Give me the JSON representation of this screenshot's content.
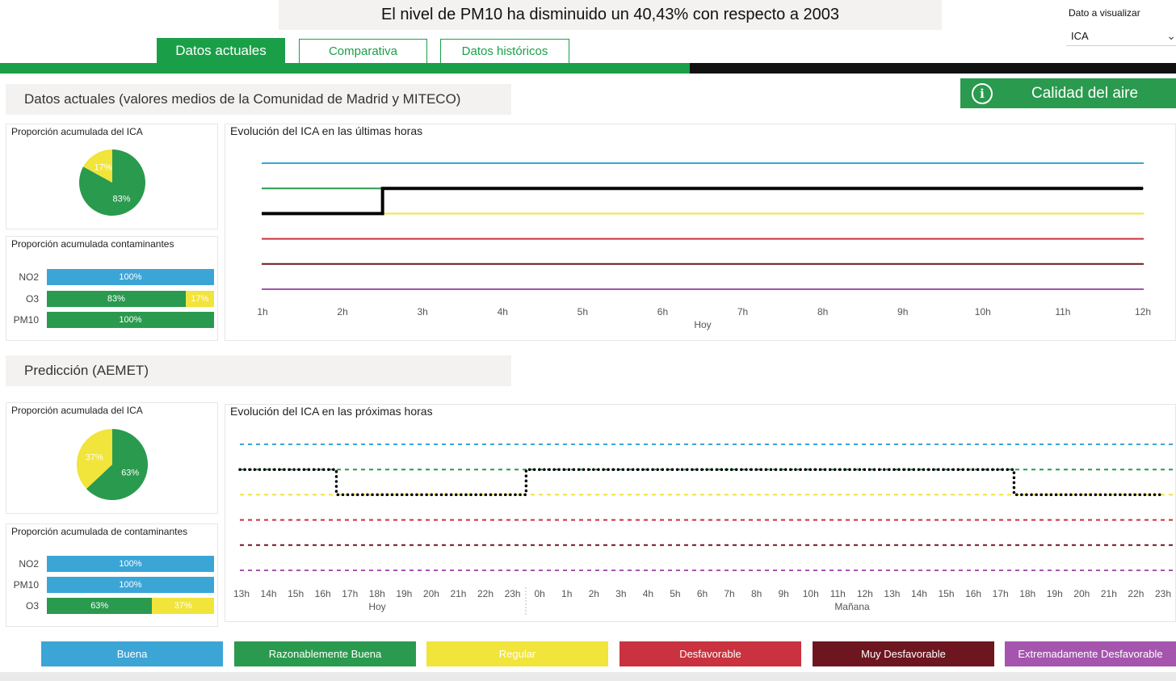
{
  "headline": "El nivel de PM10 ha disminuido un 40,43% con respecto a 2003",
  "selector": {
    "label": "Dato a visualizar",
    "value": "ICA"
  },
  "tabs": [
    "Datos actuales",
    "Comparativa",
    "Datos históricos"
  ],
  "calidad_button": "Calidad del aire",
  "current": {
    "section_title": "Datos actuales (valores medios de la Comunidad de Madrid y MITECO)",
    "pie": {
      "title": "Proporción acumulada del ICA",
      "slices": [
        {
          "label": "83%",
          "value": 83,
          "color": "#2a9a4e"
        },
        {
          "label": "17%",
          "value": 17,
          "color": "#f1e43a"
        }
      ]
    },
    "bars": {
      "title": "Proporción acumulada contaminantes",
      "rows": [
        {
          "name": "NO2",
          "segments": [
            {
              "label": "100%",
              "value": 100,
              "color": "#3ba5d6"
            }
          ]
        },
        {
          "name": "O3",
          "segments": [
            {
              "label": "83%",
              "value": 83,
              "color": "#2a9a4e"
            },
            {
              "label": "17%",
              "value": 17,
              "color": "#f1e43a"
            }
          ]
        },
        {
          "name": "PM10",
          "segments": [
            {
              "label": "100%",
              "value": 100,
              "color": "#2a9a4e"
            }
          ]
        }
      ]
    },
    "chart_title": "Evolución del ICA en las últimas horas"
  },
  "prediction": {
    "section_title": "Predicción (AEMET)",
    "pie": {
      "title": "Proporción acumulada del ICA",
      "slices": [
        {
          "label": "63%",
          "value": 63,
          "color": "#2a9a4e"
        },
        {
          "label": "37%",
          "value": 37,
          "color": "#f1e43a"
        }
      ]
    },
    "bars": {
      "title": "Proporción acumulada de contaminantes",
      "rows": [
        {
          "name": "NO2",
          "segments": [
            {
              "label": "100%",
              "value": 100,
              "color": "#3ba5d6"
            }
          ]
        },
        {
          "name": "PM10",
          "segments": [
            {
              "label": "100%",
              "value": 100,
              "color": "#3ba5d6"
            }
          ]
        },
        {
          "name": "O3",
          "segments": [
            {
              "label": "63%",
              "value": 63,
              "color": "#2a9a4e"
            },
            {
              "label": "37%",
              "value": 37,
              "color": "#f1e43a"
            }
          ]
        }
      ]
    },
    "chart_title": "Evolución del ICA en las próximas horas"
  },
  "legend": [
    {
      "label": "Buena",
      "color": "#3ba5d6"
    },
    {
      "label": "Razonablemente Buena",
      "color": "#2a9a4e"
    },
    {
      "label": "Regular",
      "color": "#f1e43a"
    },
    {
      "label": "Desfavorable",
      "color": "#c9323e"
    },
    {
      "label": "Muy Desfavorable",
      "color": "#6e1620"
    },
    {
      "label": "Extremadamente Desfavorable",
      "color": "#a555ae"
    }
  ],
  "chart_data": [
    {
      "type": "line",
      "title": "Evolución del ICA en las últimas horas",
      "x": [
        "1h",
        "2h",
        "3h",
        "4h",
        "5h",
        "6h",
        "7h",
        "8h",
        "9h",
        "10h",
        "11h",
        "12h"
      ],
      "x_group_labels": [
        "Hoy"
      ],
      "category_levels": [
        "Buena",
        "Razonablemente Buena",
        "Regular",
        "Desfavorable",
        "Muy Desfavorable",
        "Extremadamente Desfavorable"
      ],
      "category_colors": [
        "#3ba5d6",
        "#2a9a4e",
        "#f1e43a",
        "#c9323e",
        "#6e1620",
        "#a555ae"
      ],
      "series": [
        {
          "values": [
            "Regular",
            "Regular",
            "Razonablemente Buena",
            "Razonablemente Buena",
            "Razonablemente Buena",
            "Razonablemente Buena",
            "Razonablemente Buena",
            "Razonablemente Buena",
            "Razonablemente Buena",
            "Razonablemente Buena",
            "Razonablemente Buena",
            "Razonablemente Buena"
          ],
          "step_after": "2h",
          "style": "solid"
        }
      ]
    },
    {
      "type": "line",
      "title": "Evolución del ICA en las próximas horas",
      "x": [
        "13h",
        "14h",
        "15h",
        "16h",
        "17h",
        "18h",
        "19h",
        "20h",
        "21h",
        "22h",
        "23h",
        "0h",
        "1h",
        "2h",
        "3h",
        "4h",
        "5h",
        "6h",
        "7h",
        "8h",
        "9h",
        "10h",
        "11h",
        "12h",
        "13h",
        "14h",
        "15h",
        "16h",
        "17h",
        "18h",
        "19h",
        "20h",
        "21h",
        "22h",
        "23h"
      ],
      "x_group_labels": [
        "Hoy",
        "Mañana"
      ],
      "category_levels": [
        "Buena",
        "Razonablemente Buena",
        "Regular",
        "Desfavorable",
        "Muy Desfavorable",
        "Extremadamente Desfavorable"
      ],
      "category_colors": [
        "#3ba5d6",
        "#2a9a4e",
        "#f1e43a",
        "#c9323e",
        "#6e1620",
        "#a555ae"
      ],
      "series": [
        {
          "values": [
            "Razonablemente Buena",
            "Razonablemente Buena",
            "Razonablemente Buena",
            "Razonablemente Buena",
            "Regular",
            "Regular",
            "Regular",
            "Regular",
            "Regular",
            "Regular",
            "Regular",
            "Razonablemente Buena",
            "Razonablemente Buena",
            "Razonablemente Buena",
            "Razonablemente Buena",
            "Razonablemente Buena",
            "Razonablemente Buena",
            "Razonablemente Buena",
            "Razonablemente Buena",
            "Razonablemente Buena",
            "Razonablemente Buena",
            "Razonablemente Buena",
            "Razonablemente Buena",
            "Razonablemente Buena",
            "Razonablemente Buena",
            "Razonablemente Buena",
            "Razonablemente Buena",
            "Razonablemente Buena",
            "Razonablemente Buena",
            "Regular",
            "Regular",
            "Regular",
            "Regular",
            "Regular",
            "Regular"
          ],
          "style": "dotted"
        }
      ]
    }
  ]
}
